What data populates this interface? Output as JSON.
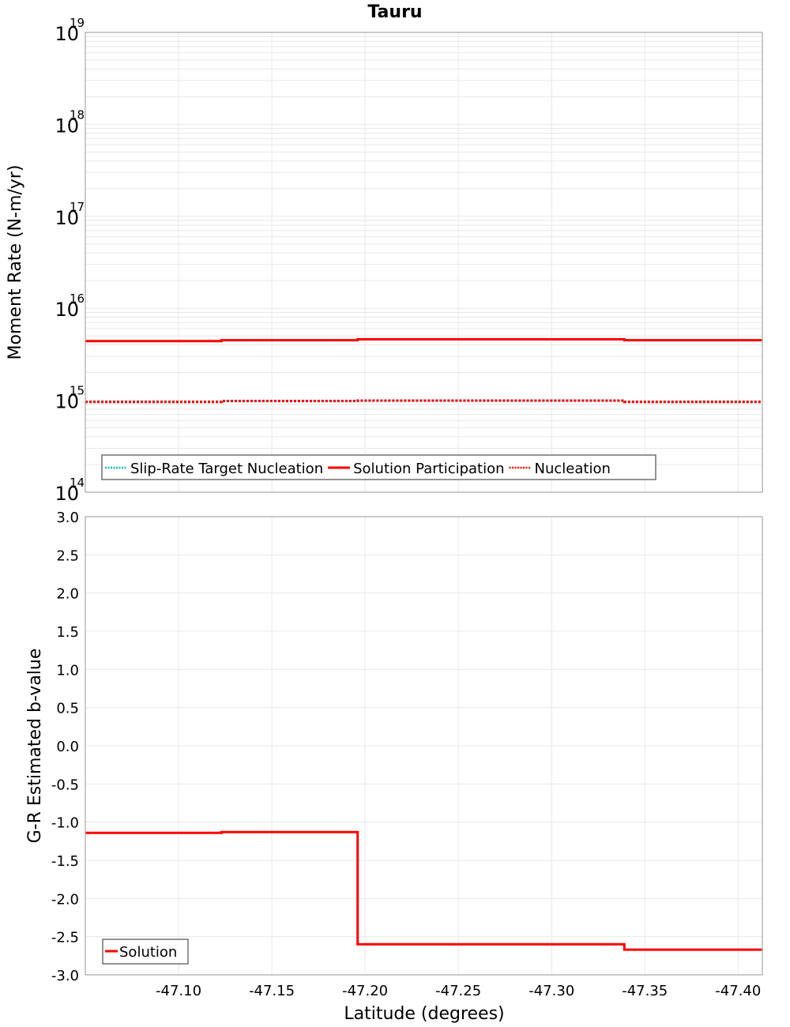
{
  "chart_data": [
    {
      "type": "line",
      "title": "Tauru",
      "xlabel": "Latitude (degrees)",
      "ylabel": "Moment Rate (N-m/yr)",
      "yscale": "log",
      "ylim": [
        100000000000000.0,
        1e+19
      ],
      "xlim": [
        -47.05,
        -47.413
      ],
      "x_reversed": true,
      "grid": true,
      "y_ticks": [
        {
          "base": "10",
          "exp": "19",
          "value": 1e+19
        },
        {
          "base": "10",
          "exp": "18",
          "value": 1e+18
        },
        {
          "base": "10",
          "exp": "17",
          "value": 1e+17
        },
        {
          "base": "10",
          "exp": "16",
          "value": 1e+16
        },
        {
          "base": "10",
          "exp": "15",
          "value": 1000000000000000.0
        },
        {
          "base": "10",
          "exp": "14",
          "value": 100000000000000.0
        }
      ],
      "legend": {
        "position": "lower-left",
        "entries": [
          {
            "label": "Slip-Rate Target Nucleation",
            "color": "#00bcbc",
            "style": "dotted"
          },
          {
            "label": "Solution Participation",
            "color": "#ff0000",
            "style": "solid"
          },
          {
            "label": "Nucleation",
            "color": "#ff0000",
            "style": "dotted"
          }
        ]
      },
      "series": [
        {
          "name": "Slip-Rate Target Nucleation",
          "color": "#00bcbc",
          "style": "dotted",
          "segments": [
            {
              "x0": -47.05,
              "x1": -47.123,
              "y": 960000000000000.0
            },
            {
              "x0": -47.123,
              "x1": -47.196,
              "y": 980000000000000.0
            },
            {
              "x0": -47.196,
              "x1": -47.339,
              "y": 990000000000000.0
            },
            {
              "x0": -47.339,
              "x1": -47.413,
              "y": 960000000000000.0
            }
          ]
        },
        {
          "name": "Solution Participation",
          "color": "#ff0000",
          "style": "solid",
          "segments": [
            {
              "x0": -47.05,
              "x1": -47.123,
              "y": 4400000000000000.0
            },
            {
              "x0": -47.123,
              "x1": -47.196,
              "y": 4500000000000000.0
            },
            {
              "x0": -47.196,
              "x1": -47.339,
              "y": 4600000000000000.0
            },
            {
              "x0": -47.339,
              "x1": -47.413,
              "y": 4500000000000000.0
            }
          ]
        },
        {
          "name": "Nucleation",
          "color": "#ff0000",
          "style": "dotted",
          "segments": [
            {
              "x0": -47.05,
              "x1": -47.123,
              "y": 960000000000000.0
            },
            {
              "x0": -47.123,
              "x1": -47.196,
              "y": 980000000000000.0
            },
            {
              "x0": -47.196,
              "x1": -47.339,
              "y": 990000000000000.0
            },
            {
              "x0": -47.339,
              "x1": -47.413,
              "y": 960000000000000.0
            }
          ]
        }
      ]
    },
    {
      "type": "line",
      "title": "",
      "xlabel": "Latitude (degrees)",
      "ylabel": "G-R Estimated b-value",
      "yscale": "linear",
      "ylim": [
        -3.0,
        3.0
      ],
      "xlim": [
        -47.05,
        -47.413
      ],
      "x_reversed": true,
      "grid": true,
      "y_ticks": [
        "3.0",
        "2.5",
        "2.0",
        "1.5",
        "1.0",
        "0.5",
        "0.0",
        "-0.5",
        "-1.0",
        "-1.5",
        "-2.0",
        "-2.5",
        "-3.0"
      ],
      "x_ticks": [
        "-47.10",
        "-47.15",
        "-47.20",
        "-47.25",
        "-47.30",
        "-47.35",
        "-47.40"
      ],
      "legend": {
        "position": "lower-left",
        "entries": [
          {
            "label": "Solution",
            "color": "#ff0000",
            "style": "solid"
          }
        ]
      },
      "series": [
        {
          "name": "Solution",
          "color": "#ff0000",
          "style": "solid",
          "segments": [
            {
              "x0": -47.05,
              "x1": -47.123,
              "y": -1.14
            },
            {
              "x0": -47.123,
              "x1": -47.196,
              "y": -1.13
            },
            {
              "x0": -47.196,
              "x1": -47.339,
              "y": -2.6
            },
            {
              "x0": -47.339,
              "x1": -47.413,
              "y": -2.67
            }
          ]
        }
      ]
    }
  ],
  "title": "Tauru",
  "top": {
    "ylabel": "Moment Rate (N-m/yr)",
    "legend": [
      "Slip-Rate Target Nucleation",
      "Solution Participation",
      "Nucleation"
    ]
  },
  "bottom": {
    "ylabel": "G-R Estimated b-value",
    "xlabel": "Latitude (degrees)",
    "legend": [
      "Solution"
    ]
  },
  "colors": {
    "red": "#ff0000",
    "cyan": "#00bcbc",
    "grid": "#e8e8e8",
    "frame": "#a8a8a8",
    "legend_border": "#707070"
  }
}
